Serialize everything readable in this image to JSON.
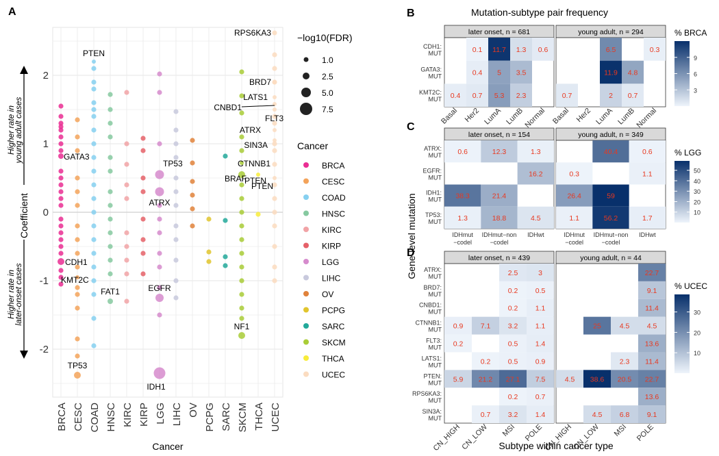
{
  "panel_labels": {
    "a": "A",
    "b": "B",
    "c": "C",
    "d": "D"
  },
  "colors": {
    "BRCA": "#ea2e93",
    "CESC": "#f3a35a",
    "COAD": "#86d0f0",
    "HNSC": "#86c9a0",
    "KIRC": "#f1a3a6",
    "KIRP": "#e56169",
    "LGG": "#d68bcd",
    "LIHC": "#c8c9dd",
    "OV": "#e0823b",
    "PCPG": "#e1c52e",
    "SARC": "#23a99a",
    "SKCM": "#a9cd37",
    "THCA": "#f8ec3a",
    "UCEC": "#fbdcc0",
    "cell_text": "#e8381f",
    "heat_low": "#eef4fb",
    "heat_high": "#08306b"
  },
  "panelA": {
    "xlabel": "Cancer",
    "ylabel": "Coefficient",
    "arrow_up_text": [
      "Higher rate in",
      "young adult cases"
    ],
    "arrow_down_text": [
      "Higher rate in",
      "later-onset cases"
    ],
    "size_legend": {
      "title": "−log10(FDR)",
      "values": [
        "1.0",
        "2.5",
        "5.0",
        "7.5"
      ]
    },
    "color_legend_title": "Cancer",
    "cancers": [
      "BRCA",
      "CESC",
      "COAD",
      "HNSC",
      "KIRC",
      "KIRP",
      "LGG",
      "LIHC",
      "OV",
      "PCPG",
      "SARC",
      "SKCM",
      "THCA",
      "UCEC"
    ],
    "yticks": [
      "2",
      "1",
      "0",
      "-1",
      "-2"
    ]
  },
  "chart_data": [
    {
      "type": "scatter",
      "title": "",
      "xlabel": "Cancer",
      "ylabel": "Coefficient",
      "ylim": [
        -2.7,
        2.7
      ],
      "categories": [
        "BRCA",
        "CESC",
        "COAD",
        "HNSC",
        "KIRC",
        "KIRP",
        "LGG",
        "LIHC",
        "OV",
        "PCPG",
        "SARC",
        "SKCM",
        "THCA",
        "UCEC"
      ],
      "labeled_points": [
        {
          "cancer": "COAD",
          "gene": "PTEN",
          "y": 2.2,
          "size": 3.0
        },
        {
          "cancer": "BRCA",
          "gene": "GATA3",
          "y": 0.82,
          "size": 4.0
        },
        {
          "cancer": "BRCA",
          "gene": "CDH1",
          "y": -0.72,
          "size": 5.0
        },
        {
          "cancer": "CESC",
          "gene": "KMT2C",
          "y": -0.95,
          "size": 3.0
        },
        {
          "cancer": "CESC",
          "gene": "TP53",
          "y": -2.38,
          "size": 5.0
        },
        {
          "cancer": "HNSC",
          "gene": "FAT1",
          "y": -1.3,
          "size": 4.0
        },
        {
          "cancer": "LGG",
          "gene": "TP53",
          "y": 0.55,
          "size": 6.5
        },
        {
          "cancer": "LGG",
          "gene": "ATRX",
          "y": 0.3,
          "size": 6.5
        },
        {
          "cancer": "LGG",
          "gene": "EGFR",
          "y": -1.25,
          "size": 6.0
        },
        {
          "cancer": "LGG",
          "gene": "IDH1",
          "y": -2.35,
          "size": 8.5
        },
        {
          "cancer": "SKCM",
          "gene": "CTNNB1",
          "y": 0.72,
          "size": 3.0
        },
        {
          "cancer": "SKCM",
          "gene": "BRAF",
          "y": 0.55,
          "size": 5.0
        },
        {
          "cancer": "SKCM",
          "gene": "NF1",
          "y": -1.8,
          "size": 5.0
        },
        {
          "cancer": "THCA",
          "gene": "PTEN",
          "y": 0.55,
          "size": 3.0
        },
        {
          "cancer": "UCEC",
          "gene": "RPS6KA3",
          "y": 2.62,
          "size": 3.5
        },
        {
          "cancer": "UCEC",
          "gene": "BRD7",
          "y": 1.9,
          "size": 3.0
        },
        {
          "cancer": "UCEC",
          "gene": "LATS1",
          "y": 1.68,
          "size": 3.0
        },
        {
          "cancer": "UCEC",
          "gene": "CNBD1",
          "y": 1.58,
          "size": 3.0
        },
        {
          "cancer": "UCEC",
          "gene": "FLT3",
          "y": 1.5,
          "size": 3.0
        },
        {
          "cancer": "UCEC",
          "gene": "ATRX",
          "y": 1.2,
          "size": 3.0
        },
        {
          "cancer": "UCEC",
          "gene": "SIN3A",
          "y": 1.05,
          "size": 3.0
        },
        {
          "cancer": "UCEC",
          "gene": "PTEN",
          "y": 0.5,
          "size": 3.0
        }
      ],
      "point_columns": [
        {
          "cancer": "BRCA",
          "y": [
            1.55,
            1.4,
            1.3,
            1.25,
            1.2,
            1.1,
            1.0,
            0.9,
            0.6,
            0.5,
            0.4,
            0.3,
            0.2,
            0.1,
            -0.1,
            -0.2,
            -0.3,
            -0.4,
            -0.5,
            -0.6,
            -0.85,
            -0.95,
            -1.05
          ]
        },
        {
          "cancer": "CESC",
          "y": [
            1.35,
            1.1,
            0.9,
            0.5,
            0.3,
            0.1,
            -0.2,
            -0.4,
            -0.6,
            -0.8,
            -1.1,
            -1.2,
            -1.4,
            -1.85,
            -2.1
          ]
        },
        {
          "cancer": "COAD",
          "y": [
            2.1,
            1.9,
            1.8,
            1.6,
            1.5,
            1.4,
            1.2,
            1.0,
            0.8,
            0.6,
            0.4,
            0.2,
            0.0,
            -0.2,
            -0.4,
            -0.6,
            -0.8,
            -1.0,
            -1.2,
            -1.55,
            -1.95
          ]
        },
        {
          "cancer": "HNSC",
          "y": [
            1.72,
            1.5,
            1.3,
            1.1,
            0.8,
            0.6,
            0.3,
            0.1,
            -0.1,
            -0.3,
            -0.5,
            -0.7,
            -0.9
          ]
        },
        {
          "cancer": "KIRC",
          "y": [
            1.75,
            1.0,
            0.7,
            0.4,
            0.2,
            -0.3,
            -0.5,
            -0.7,
            -0.9,
            -1.3
          ]
        },
        {
          "cancer": "KIRP",
          "y": [
            1.08,
            0.9,
            0.5,
            0.3,
            -0.1,
            -0.4,
            -0.6,
            -0.9
          ]
        },
        {
          "cancer": "LGG",
          "y": [
            2.02,
            1.75,
            1.0,
            0.1,
            -0.1,
            -0.3,
            -0.6,
            -0.8,
            -1.1,
            -1.5
          ]
        },
        {
          "cancer": "LIHC",
          "y": [
            1.47,
            1.2,
            1.0,
            0.8,
            0.5,
            0.3,
            0.1,
            -0.2,
            -0.4,
            -0.7,
            -1.0,
            -1.25
          ]
        },
        {
          "cancer": "OV",
          "y": [
            1.05,
            0.72,
            0.45,
            0.25,
            0.05,
            -0.2
          ]
        },
        {
          "cancer": "PCPG",
          "y": [
            -0.1,
            -0.58,
            -0.72
          ]
        },
        {
          "cancer": "SARC",
          "y": [
            0.82,
            -0.12,
            -0.65,
            -0.78
          ]
        },
        {
          "cancer": "SKCM",
          "y": [
            2.05,
            1.7,
            1.45,
            1.1,
            0.9,
            0.4,
            0.2,
            0.0,
            -0.2,
            -0.4,
            -0.6,
            -0.8,
            -1.0,
            -1.2,
            -1.4,
            -1.55
          ]
        },
        {
          "cancer": "THCA",
          "y": [
            -0.03
          ]
        },
        {
          "cancer": "UCEC",
          "y": [
            2.3,
            2.1,
            1.9,
            1.4,
            1.3,
            1.0,
            0.9,
            0.7,
            0.4,
            0.2,
            0.0,
            -0.2,
            -0.5,
            -0.8,
            -1.0
          ]
        }
      ]
    },
    {
      "type": "heatmap",
      "title": "Mutation-subtype pair frequency",
      "legend_title": "% BRCA",
      "legend_ticks": [
        "9",
        "6",
        "3"
      ],
      "range": [
        0,
        12
      ],
      "facets": [
        "later onset, n = 681",
        "young adult, n = 294"
      ],
      "rows": [
        "CDH1:\nMUT",
        "GATA3:\nMUT",
        "KMT2C:\nMUT"
      ],
      "columns": [
        "Basal",
        "Her2",
        "LumA",
        "LumB",
        "Normal"
      ],
      "values": [
        [
          [
            null,
            0.1,
            11.7,
            1.3,
            0.6
          ],
          [
            null,
            0.4,
            5,
            3.5,
            null
          ],
          [
            0.4,
            0.7,
            5.3,
            2.3,
            null
          ]
        ],
        [
          [
            null,
            null,
            6.5,
            null,
            0.3
          ],
          [
            null,
            null,
            11.9,
            4.8,
            null
          ],
          [
            0.7,
            null,
            2,
            0.7,
            null
          ]
        ]
      ]
    },
    {
      "type": "heatmap",
      "title": "",
      "ylabel": "Gene-level mutation",
      "legend_title": "% LGG",
      "legend_ticks": [
        "50",
        "40",
        "30",
        "20",
        "10"
      ],
      "range": [
        0,
        59
      ],
      "facets": [
        "later onset, n = 154",
        "young adult, n = 349"
      ],
      "rows": [
        "ATRX:\nMUT",
        "EGFR:\nMUT",
        "IDH1:\nMUT",
        "TP53:\nMUT"
      ],
      "columns": [
        "IDHmut\n−codel",
        "IDHmut−non\n−codel",
        "IDHwt"
      ],
      "values": [
        [
          [
            0.6,
            12.3,
            1.3
          ],
          [
            null,
            null,
            16.2
          ],
          [
            38.3,
            21.4,
            null
          ],
          [
            1.3,
            18.8,
            4.5
          ]
        ],
        [
          [
            null,
            40.4,
            0.6
          ],
          [
            0.3,
            null,
            1.1
          ],
          [
            26.4,
            59,
            null
          ],
          [
            1.1,
            56.2,
            1.7
          ]
        ]
      ]
    },
    {
      "type": "heatmap",
      "title": "",
      "xlabel": "Subtype within cancer type",
      "legend_title": "% UCEC",
      "legend_ticks": [
        "30",
        "20",
        "10"
      ],
      "range": [
        0,
        38.6
      ],
      "facets": [
        "later onset, n = 439",
        "young adult, n = 44"
      ],
      "rows": [
        "ATRX:\nMUT",
        "BRD7:\nMUT",
        "CNBD1:\nMUT",
        "CTNNB1:\nMUT",
        "FLT3:\nMUT",
        "LATS1:\nMUT",
        "PTEN:\nMUT",
        "RPS6KA3:\nMUT",
        "SIN3A:\nMUT"
      ],
      "columns": [
        "CN_HIGH",
        "CN_LOW",
        "MSI",
        "POLE"
      ],
      "values": [
        [
          [
            null,
            null,
            2.5,
            3
          ],
          [
            null,
            null,
            0.2,
            0.5
          ],
          [
            null,
            null,
            0.2,
            1.1
          ],
          [
            0.9,
            7.1,
            3.2,
            1.1
          ],
          [
            0.2,
            null,
            0.5,
            1.4
          ],
          [
            null,
            0.2,
            0.5,
            0.9
          ],
          [
            5.9,
            21.2,
            27.1,
            7.5
          ],
          [
            null,
            null,
            0.2,
            0.7
          ],
          [
            null,
            0.7,
            3.2,
            1.4
          ]
        ],
        [
          [
            null,
            null,
            null,
            22.7
          ],
          [
            null,
            null,
            null,
            9.1
          ],
          [
            null,
            null,
            null,
            11.4
          ],
          [
            null,
            25,
            4.5,
            4.5
          ],
          [
            null,
            null,
            null,
            13.6
          ],
          [
            null,
            null,
            2.3,
            11.4
          ],
          [
            4.5,
            38.6,
            20.5,
            22.7
          ],
          [
            null,
            null,
            null,
            13.6
          ],
          [
            null,
            4.5,
            6.8,
            9.1
          ]
        ]
      ]
    }
  ]
}
